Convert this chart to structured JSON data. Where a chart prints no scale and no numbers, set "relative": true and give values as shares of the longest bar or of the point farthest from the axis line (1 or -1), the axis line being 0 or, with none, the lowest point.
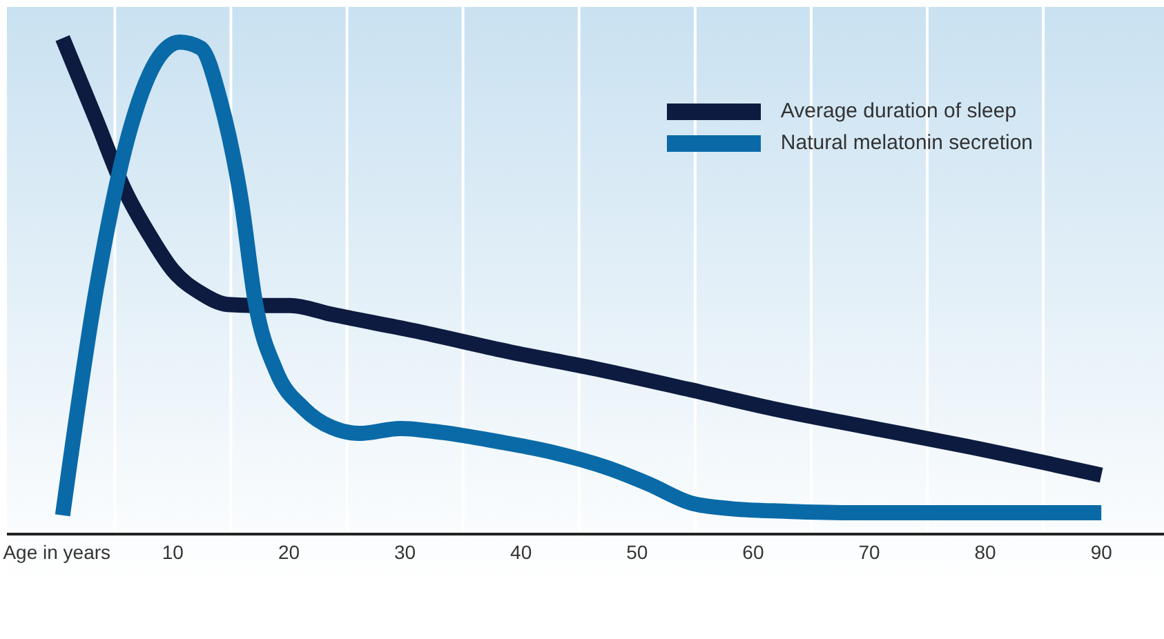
{
  "chart_data": {
    "type": "line",
    "relative": true,
    "xlim": [
      -4.3,
      95.4
    ],
    "xticks": [
      {
        "value": 0,
        "label": "Age in years"
      },
      {
        "value": 5,
        "label": null
      },
      10,
      {
        "value": 15,
        "label": null
      },
      20,
      {
        "value": 25,
        "label": null
      },
      30,
      {
        "value": 35,
        "label": null
      },
      40,
      {
        "value": 45,
        "label": null
      },
      50,
      {
        "value": 55,
        "label": null
      },
      60,
      {
        "value": 65,
        "label": null
      },
      70,
      {
        "value": 75,
        "label": null
      },
      80,
      {
        "value": 85,
        "label": null
      },
      90
    ],
    "grid": "x",
    "legend": "top right",
    "series": [
      {
        "name": "Average duration of sleep",
        "color": "#0d1b40",
        "x": [
          0.5,
          3.4,
          5.8,
          8.2,
          10.0,
          12.4,
          14.7,
          17.1,
          20.1,
          23.7,
          30.8,
          39.1,
          46.3,
          54.6,
          61.7,
          70.0,
          78.4,
          90.0
        ],
        "values": [
          1.0,
          0.835,
          0.696,
          0.595,
          0.532,
          0.486,
          0.463,
          0.461,
          0.461,
          0.443,
          0.41,
          0.367,
          0.334,
          0.291,
          0.253,
          0.215,
          0.177,
          0.119
        ]
      },
      {
        "name": "Natural melatonin secretion",
        "color": "#0a6aa8",
        "x": [
          0.5,
          3.4,
          6.4,
          8.8,
          10.6,
          12.4,
          14.1,
          15.9,
          17.1,
          18.9,
          21.3,
          23.7,
          26.1,
          29.6,
          33.2,
          37.9,
          42.7,
          47.4,
          51.0,
          54.6,
          58.2,
          62.9,
          68.8,
          78.4,
          90.0
        ],
        "values": [
          0.038,
          0.494,
          0.823,
          0.962,
          0.992,
          0.98,
          0.873,
          0.671,
          0.468,
          0.329,
          0.253,
          0.215,
          0.203,
          0.213,
          0.205,
          0.187,
          0.165,
          0.134,
          0.101,
          0.063,
          0.051,
          0.046,
          0.043,
          0.043,
          0.043
        ]
      }
    ]
  }
}
